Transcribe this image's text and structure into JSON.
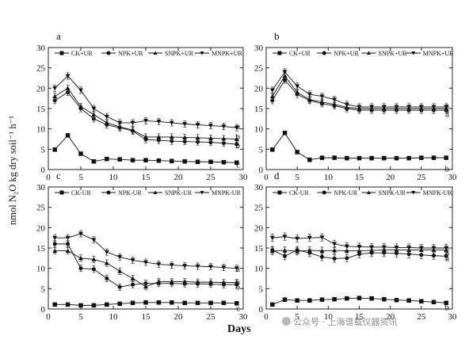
{
  "figure": {
    "ylabel": "nmol N₂O kg dry soil⁻¹ h⁻¹",
    "xlabel": "Days",
    "watermark": "公众号 · 上海谱载仪器资讯",
    "watermark_icon": "wechat-icon"
  },
  "chart_data": [
    {
      "type": "line",
      "panel": "a",
      "xlim": [
        0,
        30
      ],
      "ylim": [
        0,
        30
      ],
      "xticks": [
        0,
        5,
        10,
        15,
        20,
        25,
        30
      ],
      "yticks": [
        0,
        5,
        10,
        15,
        20,
        25,
        30
      ],
      "grid": false,
      "legend": "top",
      "x": [
        1,
        3,
        5,
        7,
        9,
        11,
        13,
        15,
        17,
        19,
        21,
        23,
        25,
        27,
        29
      ],
      "series": [
        {
          "name": "CK+UR",
          "marker": "square",
          "values": [
            4.9,
            8.4,
            3.9,
            2.0,
            2.6,
            2.5,
            2.3,
            2.3,
            2.2,
            2.1,
            2.0,
            1.9,
            1.9,
            1.8,
            1.7
          ],
          "error": 0.4
        },
        {
          "name": "NPK+UR",
          "marker": "circle",
          "values": [
            17.0,
            19.0,
            15.0,
            12.5,
            11.0,
            10.3,
            9.5,
            7.4,
            7.2,
            7.0,
            6.9,
            6.8,
            6.7,
            6.5,
            6.2
          ],
          "error": 0.8
        },
        {
          "name": "SNPK+UR",
          "marker": "triangle-up",
          "values": [
            18.0,
            20.0,
            15.5,
            13.5,
            11.5,
            10.5,
            9.7,
            8.0,
            8.0,
            8.0,
            7.9,
            7.8,
            7.7,
            7.6,
            7.5
          ],
          "error": 0.8
        },
        {
          "name": "MNPK+UR",
          "marker": "triangle-down",
          "values": [
            20.0,
            23.0,
            19.5,
            15.0,
            13.0,
            11.5,
            11.5,
            12.0,
            11.8,
            11.5,
            11.2,
            11.0,
            10.8,
            10.6,
            10.3
          ],
          "error": 0.8
        }
      ],
      "end_labels": [
        {
          "text": "a",
          "y": 10.7
        },
        {
          "text": "b",
          "y": 8.2
        },
        {
          "text": "b",
          "y": 6.0
        },
        {
          "text": "c",
          "y": 1.3
        }
      ]
    },
    {
      "type": "line",
      "panel": "b",
      "xlim": [
        0,
        30
      ],
      "ylim": [
        0,
        30
      ],
      "xticks": [
        0,
        5,
        10,
        15,
        20,
        25,
        30
      ],
      "yticks": [
        0,
        5,
        10,
        15,
        20,
        25,
        30
      ],
      "grid": false,
      "legend": "top",
      "x": [
        1,
        3,
        5,
        7,
        9,
        11,
        13,
        15,
        17,
        19,
        21,
        23,
        25,
        27,
        29
      ],
      "series": [
        {
          "name": "CK+UR",
          "marker": "square",
          "values": [
            4.9,
            9.0,
            4.3,
            2.4,
            2.9,
            2.9,
            2.8,
            2.8,
            2.8,
            2.8,
            2.8,
            2.8,
            2.9,
            2.9,
            2.9
          ],
          "error": 0.4
        },
        {
          "name": "NPK+UR",
          "marker": "circle",
          "values": [
            17.0,
            22.0,
            18.5,
            17.0,
            16.2,
            15.7,
            15.0,
            14.6,
            14.6,
            14.6,
            14.6,
            14.6,
            14.6,
            14.6,
            14.6
          ],
          "error": 0.8
        },
        {
          "name": "SNPK+UR",
          "marker": "triangle-up",
          "values": [
            18.0,
            23.0,
            19.0,
            17.2,
            16.6,
            16.0,
            15.3,
            15.0,
            15.0,
            15.0,
            15.0,
            15.0,
            15.0,
            15.0,
            15.0
          ],
          "error": 0.8
        },
        {
          "name": "MNPK+UR",
          "marker": "triangle-down",
          "values": [
            19.5,
            24.0,
            20.5,
            18.5,
            18.0,
            17.2,
            16.0,
            15.4,
            15.4,
            15.4,
            15.4,
            15.4,
            15.4,
            15.4,
            15.4
          ],
          "error": 0.8
        }
      ],
      "end_labels": [
        {
          "text": "a",
          "y": 15.8
        },
        {
          "text": "a",
          "y": 14.7
        },
        {
          "text": "a",
          "y": 13.7
        },
        {
          "text": "b",
          "y": 0.3
        }
      ]
    },
    {
      "type": "line",
      "panel": "c",
      "xlim": [
        0,
        30
      ],
      "ylim": [
        0,
        30
      ],
      "xticks": [
        0,
        5,
        10,
        15,
        20,
        25,
        30
      ],
      "yticks": [
        0,
        5,
        10,
        15,
        20,
        25,
        30
      ],
      "grid": false,
      "legend": "top",
      "x": [
        1,
        3,
        5,
        7,
        9,
        11,
        13,
        15,
        17,
        19,
        21,
        23,
        25,
        27,
        29
      ],
      "series": [
        {
          "name": "CK-UR",
          "marker": "square",
          "values": [
            1.1,
            1.1,
            0.9,
            0.9,
            1.1,
            1.3,
            1.5,
            1.6,
            1.6,
            1.6,
            1.5,
            1.5,
            1.5,
            1.5,
            1.4
          ],
          "error": 0.3
        },
        {
          "name": "NPK-UR",
          "marker": "circle",
          "values": [
            16.0,
            16.0,
            10.0,
            9.8,
            7.5,
            5.4,
            6.0,
            6.3,
            6.3,
            6.3,
            6.2,
            6.2,
            6.1,
            6.0,
            6.0
          ],
          "error": 0.8
        },
        {
          "name": "SNPK-UR",
          "marker": "triangle-up",
          "values": [
            14.3,
            14.3,
            12.5,
            12.2,
            11.3,
            9.3,
            7.5,
            5.5,
            6.7,
            6.7,
            6.7,
            6.6,
            6.6,
            6.5,
            6.5
          ],
          "error": 0.8
        },
        {
          "name": "MNPK-UR",
          "marker": "triangle-down",
          "values": [
            17.5,
            17.5,
            18.5,
            17.0,
            14.0,
            12.8,
            12.0,
            11.5,
            11.0,
            10.8,
            10.6,
            10.5,
            10.4,
            10.2,
            10.0
          ],
          "error": 0.8
        }
      ],
      "end_labels": [
        {
          "text": "a",
          "y": 10.0
        },
        {
          "text": "b",
          "y": 6.7
        },
        {
          "text": "b",
          "y": 5.6
        },
        {
          "text": "c",
          "y": 0.3
        }
      ]
    },
    {
      "type": "line",
      "panel": "d",
      "xlim": [
        0,
        30
      ],
      "ylim": [
        0,
        30
      ],
      "xticks": [
        0,
        5,
        10,
        15,
        20,
        25,
        30
      ],
      "yticks": [
        0,
        5,
        10,
        15,
        20,
        25,
        30
      ],
      "grid": false,
      "legend": "top",
      "x": [
        1,
        3,
        5,
        7,
        9,
        11,
        13,
        15,
        17,
        19,
        21,
        23,
        25,
        27,
        29
      ],
      "series": [
        {
          "name": "CK-UR",
          "marker": "square",
          "values": [
            1.1,
            2.3,
            2.1,
            2.1,
            2.3,
            2.4,
            2.6,
            2.7,
            2.6,
            2.4,
            2.2,
            2.1,
            1.9,
            1.7,
            1.5
          ],
          "error": 0.3
        },
        {
          "name": "NPK-UR",
          "marker": "circle",
          "values": [
            14.5,
            13.0,
            14.5,
            13.8,
            12.8,
            12.4,
            12.5,
            13.5,
            13.8,
            13.8,
            13.7,
            13.5,
            13.3,
            13.1,
            13.0
          ],
          "error": 0.9
        },
        {
          "name": "SNPK-UR",
          "marker": "triangle-up",
          "values": [
            14.3,
            14.4,
            14.2,
            14.4,
            14.3,
            14.4,
            14.3,
            14.3,
            14.4,
            14.5,
            14.5,
            14.5,
            14.5,
            14.5,
            14.5
          ],
          "error": 0.9
        },
        {
          "name": "MNPK-UR",
          "marker": "triangle-down",
          "values": [
            17.5,
            17.8,
            17.3,
            17.5,
            17.6,
            16.0,
            15.4,
            15.3,
            15.2,
            15.2,
            15.1,
            15.1,
            15.0,
            15.0,
            15.0
          ],
          "error": 0.9
        }
      ],
      "end_labels": [
        {
          "text": "a",
          "y": 15.2
        },
        {
          "text": "a",
          "y": 14.0
        },
        {
          "text": "a",
          "y": 12.6
        },
        {
          "text": "b",
          "y": 0.5
        }
      ]
    }
  ]
}
